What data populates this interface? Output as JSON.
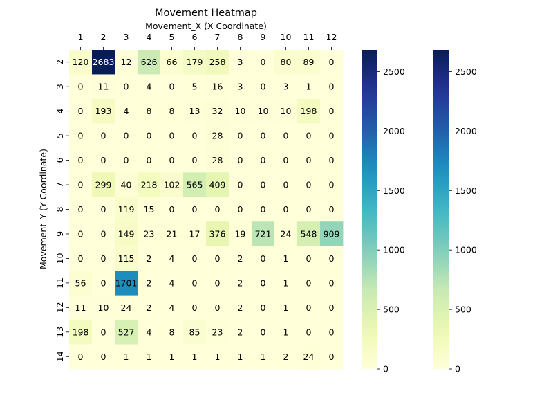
{
  "chart_data": {
    "type": "heatmap",
    "title": "Movement Heatmap",
    "xlabel": "Movement_X (X Coordinate)",
    "ylabel": "Movement_Y (Y Coordinate)",
    "x_categories": [
      "1",
      "2",
      "3",
      "4",
      "5",
      "6",
      "7",
      "8",
      "9",
      "10",
      "11",
      "12"
    ],
    "y_categories": [
      "2",
      "3",
      "4",
      "5",
      "6",
      "7",
      "8",
      "9",
      "10",
      "11",
      "12",
      "13",
      "14"
    ],
    "values": [
      [
        120,
        2683,
        12,
        626,
        66,
        179,
        258,
        3,
        0,
        80,
        89,
        0
      ],
      [
        0,
        11,
        0,
        4,
        0,
        5,
        16,
        3,
        0,
        3,
        1,
        0
      ],
      [
        0,
        193,
        4,
        8,
        8,
        13,
        32,
        10,
        10,
        10,
        198,
        0
      ],
      [
        0,
        0,
        0,
        0,
        0,
        0,
        28,
        0,
        0,
        0,
        0,
        0
      ],
      [
        0,
        0,
        0,
        0,
        0,
        0,
        28,
        0,
        0,
        0,
        0,
        0
      ],
      [
        0,
        299,
        40,
        218,
        102,
        565,
        409,
        0,
        0,
        0,
        0,
        0
      ],
      [
        0,
        0,
        119,
        15,
        0,
        0,
        0,
        0,
        0,
        0,
        0,
        0
      ],
      [
        0,
        0,
        149,
        23,
        21,
        17,
        376,
        19,
        721,
        24,
        548,
        909
      ],
      [
        0,
        0,
        115,
        2,
        4,
        0,
        0,
        2,
        0,
        1,
        0,
        0
      ],
      [
        56,
        0,
        1701,
        2,
        4,
        0,
        0,
        2,
        0,
        1,
        0,
        0
      ],
      [
        11,
        10,
        24,
        2,
        4,
        0,
        0,
        2,
        0,
        1,
        0,
        0
      ],
      [
        198,
        0,
        527,
        4,
        8,
        85,
        23,
        2,
        0,
        1,
        0,
        0
      ],
      [
        0,
        0,
        1,
        1,
        1,
        1,
        1,
        1,
        1,
        2,
        24,
        0
      ]
    ],
    "colormap": "YlGnBu",
    "value_range": [
      0,
      2683
    ],
    "colorbar_ticks": [
      0,
      500,
      1000,
      1500,
      2000,
      2500
    ],
    "colorbars": 2,
    "x_axis_position": "top"
  }
}
